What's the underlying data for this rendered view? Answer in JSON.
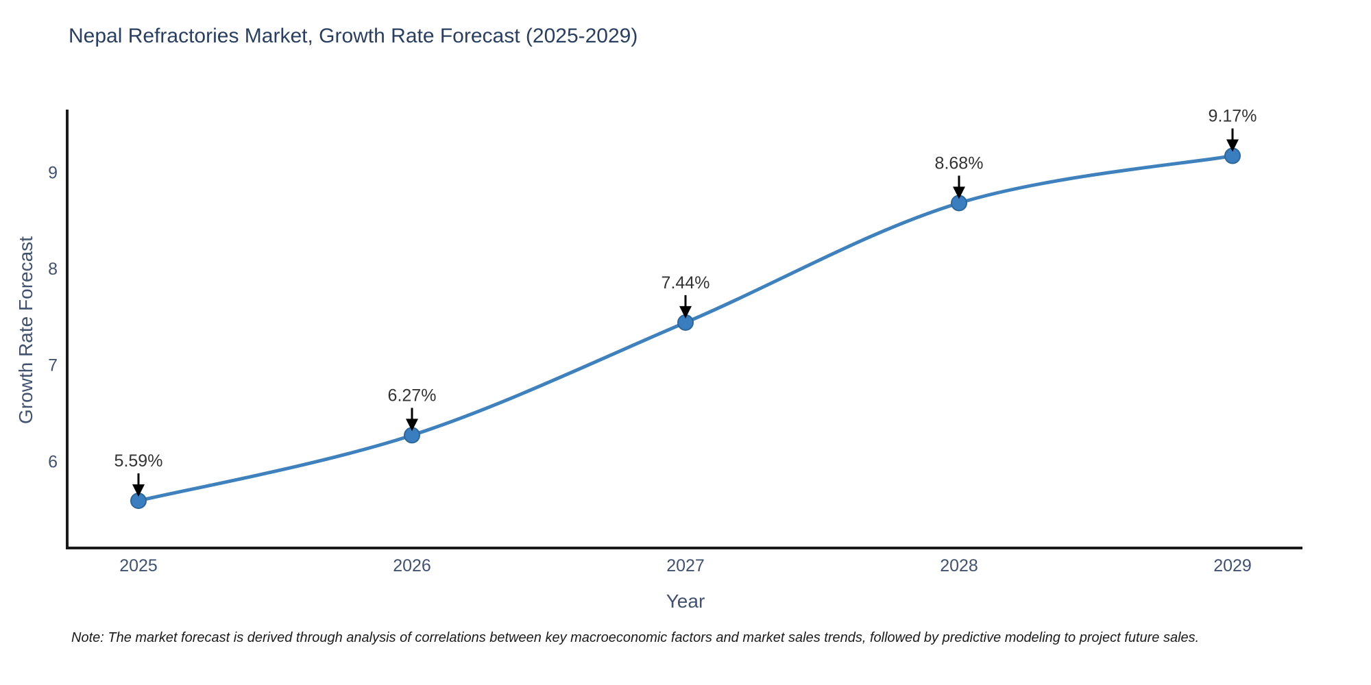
{
  "figure": {
    "note": "Note: The market forecast is derived through analysis of correlations between key macroeconomic factors and market sales trends, followed by predictive modeling to project future sales."
  },
  "chart_data": {
    "type": "line",
    "title": "Nepal Refractories Market, Growth Rate Forecast (2025-2029)",
    "xlabel": "Year",
    "ylabel": "Growth Rate Forecast",
    "categories": [
      "2025",
      "2026",
      "2027",
      "2028",
      "2029"
    ],
    "series": [
      {
        "name": "Growth Rate Forecast",
        "values": [
          5.59,
          6.27,
          7.44,
          8.68,
          9.17
        ],
        "point_labels": [
          "5.59%",
          "6.27%",
          "7.44%",
          "8.68%",
          "9.17%"
        ]
      }
    ],
    "y_ticks": [
      6,
      7,
      8,
      9
    ],
    "ylim": [
      5.1,
      9.65
    ],
    "grid": false,
    "legend_position": "none",
    "annotations_style": "value label with down arrow above each point",
    "colors": {
      "line": "#3f81bd",
      "marker_fill": "#3a7ebf",
      "marker_edge": "#2d6699",
      "axis_spine": "#1a1a1a",
      "title_text": "#2a3f5f",
      "axis_label_text": "#42526e",
      "tick_text": "#42526e",
      "annotation_text": "#333333",
      "arrow": "#000000",
      "background": "#ffffff"
    }
  }
}
